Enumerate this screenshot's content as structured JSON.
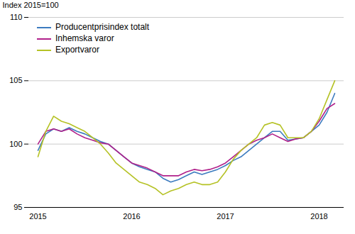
{
  "chart_data": {
    "type": "line",
    "ylabel": "Index 2015=100",
    "categories": [
      "2015",
      null,
      null,
      null,
      null,
      null,
      null,
      null,
      null,
      null,
      null,
      null,
      "2016",
      null,
      null,
      null,
      null,
      null,
      null,
      null,
      null,
      null,
      null,
      null,
      "2017",
      null,
      null,
      null,
      null,
      null,
      null,
      null,
      null,
      null,
      null,
      null,
      "2018",
      null,
      null
    ],
    "series": [
      {
        "name": "Producentprisindex totalt",
        "color": "#3c7bbf",
        "values": [
          99.5,
          100.8,
          101.2,
          101.0,
          101.3,
          101.0,
          100.8,
          100.5,
          100.2,
          100.0,
          99.5,
          99.0,
          98.5,
          98.2,
          98.0,
          97.8,
          97.3,
          97.0,
          97.2,
          97.5,
          97.8,
          97.6,
          97.8,
          98.0,
          98.3,
          98.7,
          99.0,
          99.5,
          100.0,
          100.5,
          101.0,
          101.0,
          100.3,
          100.4,
          100.5,
          101.0,
          101.5,
          102.5,
          104.0
        ]
      },
      {
        "name": "Inhemska varor",
        "color": "#b0208a",
        "values": [
          100.0,
          101.0,
          101.2,
          101.0,
          101.2,
          100.8,
          100.5,
          100.3,
          100.1,
          100.0,
          99.5,
          99.0,
          98.5,
          98.3,
          98.1,
          97.8,
          97.5,
          97.5,
          97.5,
          97.8,
          98.0,
          97.9,
          98.0,
          98.2,
          98.5,
          99.0,
          99.5,
          100.0,
          100.3,
          100.5,
          100.8,
          100.5,
          100.2,
          100.4,
          100.5,
          101.0,
          101.8,
          102.8,
          103.2
        ]
      },
      {
        "name": "Exportvaror",
        "color": "#b5c225",
        "values": [
          99.0,
          101.0,
          102.2,
          101.8,
          101.6,
          101.3,
          101.0,
          100.5,
          100.0,
          99.3,
          98.5,
          98.0,
          97.5,
          97.0,
          96.8,
          96.5,
          96.0,
          96.3,
          96.5,
          96.8,
          97.0,
          96.8,
          96.8,
          97.0,
          97.8,
          98.8,
          99.5,
          100.0,
          100.5,
          101.5,
          101.7,
          101.5,
          100.5,
          100.5,
          100.5,
          101.0,
          102.0,
          103.5,
          105.0
        ]
      }
    ],
    "ylim": [
      95,
      110
    ],
    "yticks": [
      95,
      100,
      105,
      110
    ],
    "grid": true,
    "legend": "upper left"
  }
}
